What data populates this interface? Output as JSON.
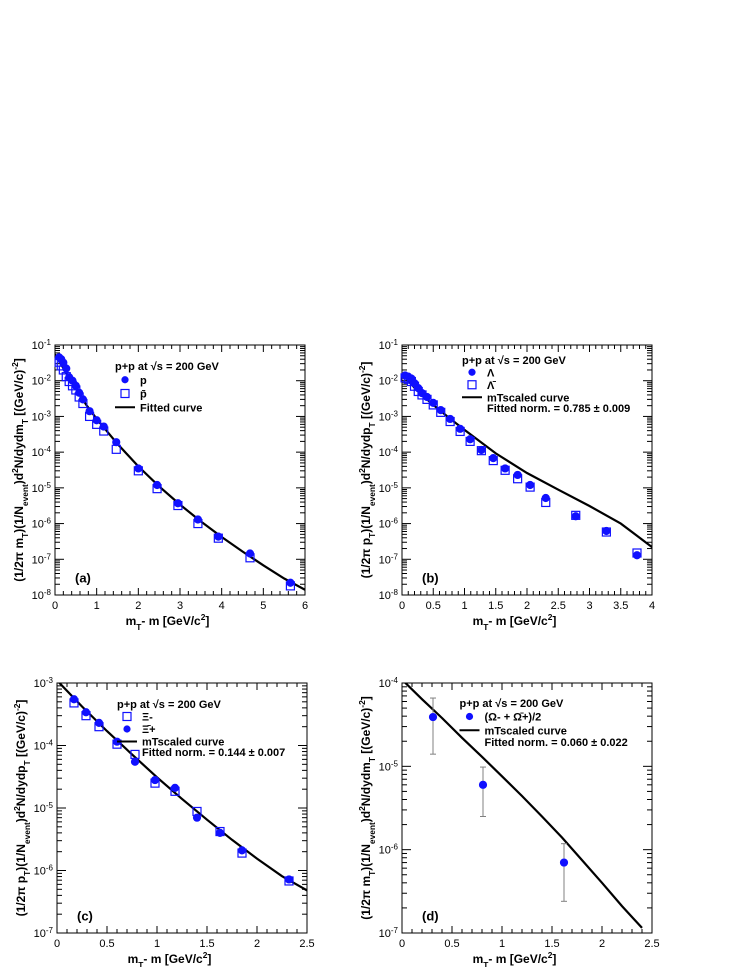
{
  "style": {
    "marker_color": "#1010ff",
    "curve_color": "#000000",
    "error_color": "#808080"
  },
  "chart_data": [
    {
      "id": "a",
      "type": "scatter",
      "panel_label": "(a)",
      "xlabel": "mT- m [GeV/c2]",
      "ylabel": "(1/2π mT)(1/Nevent)d2N/dydmT [(GeV/c)-2]",
      "xlim": [
        0,
        6
      ],
      "ylim": [
        1e-08,
        0.1
      ],
      "ylog": true,
      "x_ticks": [
        "0",
        "1",
        "2",
        "3",
        "4",
        "5",
        "6"
      ],
      "y_ticks": [
        "10-8",
        "10-7",
        "10-6",
        "10-5",
        "10-4",
        "10-3",
        "10-2",
        "10-1"
      ],
      "legend": {
        "title": "p+p at √s = 200 GeV",
        "entries": [
          {
            "marker": "filled-circle",
            "label": "p"
          },
          {
            "marker": "open-square",
            "label": "p̄"
          },
          {
            "marker": "line",
            "label": "Fitted curve"
          }
        ]
      },
      "series": [
        {
          "name": "p",
          "marker": "filled-circle",
          "x": [
            0.1,
            0.15,
            0.2,
            0.27,
            0.34,
            0.42,
            0.5,
            0.58,
            0.67,
            0.83,
            1.0,
            1.17,
            1.47,
            2.0,
            2.45,
            2.95,
            3.43,
            3.92,
            4.68,
            5.65
          ],
          "y": [
            0.045,
            0.04,
            0.032,
            0.022,
            0.0125,
            0.01,
            0.0072,
            0.0046,
            0.003,
            0.0014,
            0.00078,
            0.00052,
            0.00019,
            3.5e-05,
            1.2e-05,
            3.7e-06,
            1.3e-06,
            4.3e-07,
            1.45e-07,
            2.2e-08
          ]
        },
        {
          "name": "p̄",
          "marker": "open-square",
          "x": [
            0.1,
            0.15,
            0.2,
            0.27,
            0.34,
            0.42,
            0.5,
            0.58,
            0.67,
            0.83,
            1.0,
            1.17,
            1.47,
            2.0,
            2.45,
            2.95,
            3.43,
            3.92,
            4.68,
            5.65
          ],
          "y": [
            0.033,
            0.026,
            0.02,
            0.013,
            0.0095,
            0.0072,
            0.0055,
            0.0035,
            0.0023,
            0.001,
            0.0006,
            0.00039,
            0.00012,
            3e-05,
            9.5e-06,
            3.2e-06,
            1e-06,
            3.9e-07,
            1.1e-07,
            1.8e-08
          ]
        }
      ],
      "curve": {
        "name": "Fitted curve",
        "x": [
          0,
          0.25,
          0.5,
          0.75,
          1,
          1.5,
          2,
          2.5,
          3,
          3.5,
          4,
          4.5,
          5,
          5.5,
          6
        ],
        "y": [
          0.055,
          0.018,
          0.006,
          0.0021,
          0.00085,
          0.00017,
          4e-05,
          1.1e-05,
          3.4e-06,
          1.15e-06,
          4.2e-07,
          1.65e-07,
          6.8e-08,
          2.9e-08,
          1.4e-08
        ]
      }
    },
    {
      "id": "b",
      "type": "scatter",
      "panel_label": "(b)",
      "xlabel": "mT- m [GeV/c2]",
      "ylabel": "(1/2π pT)(1/Nevent)d2N/dydpT [(GeV/c)-2]",
      "xlim": [
        0,
        4
      ],
      "ylim": [
        1e-08,
        0.1
      ],
      "ylog": true,
      "x_ticks": [
        "0",
        "0.5",
        "1",
        "1.5",
        "2",
        "2.5",
        "3",
        "3.5",
        "4"
      ],
      "y_ticks": [
        "10-8",
        "10-7",
        "10-6",
        "10-5",
        "10-4",
        "10-3",
        "10-2",
        "10-1"
      ],
      "legend": {
        "title": "p+p at √s = 200 GeV",
        "entries": [
          {
            "marker": "filled-circle",
            "label": "Λ"
          },
          {
            "marker": "open-square",
            "label": "Λ̄"
          },
          {
            "marker": "line",
            "label": "mTscaled curve"
          }
        ],
        "note": "Fitted norm. = 0.785 ± 0.009"
      },
      "series": [
        {
          "name": "Λ",
          "marker": "filled-circle",
          "x": [
            0.05,
            0.1,
            0.15,
            0.2,
            0.26,
            0.32,
            0.4,
            0.5,
            0.62,
            0.77,
            0.93,
            1.09,
            1.27,
            1.46,
            1.65,
            1.85,
            2.05,
            2.3,
            2.78,
            3.27,
            3.76
          ],
          "y": [
            0.014,
            0.013,
            0.0115,
            0.0085,
            0.0062,
            0.0045,
            0.0035,
            0.0024,
            0.0015,
            0.00085,
            0.00045,
            0.00023,
            0.000115,
            6.8e-05,
            3.5e-05,
            2.3e-05,
            1.2e-05,
            5.2e-06,
            1.6e-06,
            6.2e-07,
            1.3e-07
          ]
        },
        {
          "name": "Λ̄",
          "marker": "open-square",
          "x": [
            0.05,
            0.1,
            0.15,
            0.2,
            0.26,
            0.32,
            0.4,
            0.5,
            0.62,
            0.77,
            0.93,
            1.09,
            1.27,
            1.46,
            1.65,
            1.85,
            2.05,
            2.3,
            2.78,
            3.27,
            3.76
          ],
          "y": [
            0.012,
            0.011,
            0.0095,
            0.007,
            0.005,
            0.004,
            0.003,
            0.0021,
            0.0013,
            0.00072,
            0.00038,
            0.0002,
            0.00011,
            5.8e-05,
            3.1e-05,
            1.8e-05,
            1.05e-05,
            3.9e-06,
            1.7e-06,
            5.8e-07,
            1.5e-07
          ]
        }
      ],
      "curve": {
        "name": "mTscaled curve",
        "x": [
          0,
          0.25,
          0.5,
          0.75,
          1,
          1.5,
          2,
          2.5,
          3,
          3.5,
          4
        ],
        "y": [
          0.015,
          0.0052,
          0.0021,
          0.00092,
          0.00042,
          9.2e-05,
          2.6e-05,
          8.9e-06,
          3.1e-06,
          1e-06,
          2.2e-07
        ]
      }
    },
    {
      "id": "c",
      "type": "scatter",
      "panel_label": "(c)",
      "xlabel": "mT- m [GeV/c2]",
      "ylabel": "(1/2π pT)(1/Nevent)d2N/dydpT [(GeV/c)-2]",
      "xlim": [
        0,
        2.5
      ],
      "ylim": [
        1e-07,
        0.001
      ],
      "ylog": true,
      "x_ticks": [
        "0",
        "0.5",
        "1",
        "1.5",
        "2",
        "2.5"
      ],
      "y_ticks": [
        "10-7",
        "10-6",
        "10-5",
        "10-4",
        "10-3"
      ],
      "legend": {
        "title": "p+p at √s = 200 GeV",
        "entries": [
          {
            "marker": "open-square",
            "label": "Ξ-"
          },
          {
            "marker": "filled-circle",
            "label": "Ξ̄+"
          },
          {
            "marker": "line",
            "label": "mTscaled curve"
          }
        ],
        "note": "Fitted norm. = 0.144 ± 0.007"
      },
      "series": [
        {
          "name": "Ξ-",
          "marker": "open-square",
          "x": [
            0.17,
            0.29,
            0.42,
            0.6,
            0.78,
            0.98,
            1.18,
            1.4,
            1.63,
            1.85,
            2.32
          ],
          "y": [
            0.00048,
            0.0003,
            0.0002,
            0.000105,
            7.2e-05,
            2.5e-05,
            1.85e-05,
            8.8e-06,
            4.2e-06,
            1.9e-06,
            6.8e-07
          ]
        },
        {
          "name": "Ξ̄+",
          "marker": "filled-circle",
          "x": [
            0.17,
            0.29,
            0.42,
            0.6,
            0.78,
            0.98,
            1.18,
            1.4,
            1.63,
            1.85,
            2.32
          ],
          "y": [
            0.00055,
            0.00034,
            0.00023,
            0.000115,
            5.5e-05,
            2.8e-05,
            2.1e-05,
            7e-06,
            4e-06,
            2.1e-06,
            7.2e-07
          ]
        }
      ],
      "curve": {
        "name": "mTscaled curve",
        "x": [
          0,
          0.25,
          0.5,
          0.75,
          1,
          1.25,
          1.5,
          1.75,
          2,
          2.25,
          2.5
        ],
        "y": [
          0.0011,
          0.00042,
          0.00017,
          7.2e-05,
          3.1e-05,
          1.4e-05,
          6.5e-06,
          3.1e-06,
          1.55e-06,
          8.1e-07,
          4.8e-07
        ]
      }
    },
    {
      "id": "d",
      "type": "scatter",
      "panel_label": "(d)",
      "xlabel": "mT- m [GeV/c2]",
      "ylabel": "(1/2π mT)(1/Nevent)d2N/dydmT [(GeV/c)-2]",
      "xlim": [
        0,
        2.5
      ],
      "ylim": [
        1e-07,
        0.0001
      ],
      "ylog": true,
      "x_ticks": [
        "0",
        "0.5",
        "1",
        "1.5",
        "2",
        "2.5"
      ],
      "y_ticks": [
        "10-7",
        "10-6",
        "10-5",
        "10-4"
      ],
      "legend": {
        "title": "p+p at √s = 200 GeV",
        "entries": [
          {
            "marker": "filled-circle",
            "label": "(Ω- + Ω̄+)/2"
          },
          {
            "marker": "line",
            "label": "mTscaled curve"
          }
        ],
        "note": "Fitted norm. = 0.060 ± 0.022"
      },
      "series": [
        {
          "name": "(Ω- + Ω̄+)/2",
          "marker": "filled-circle",
          "x": [
            0.31,
            0.81,
            1.62
          ],
          "y": [
            3.9e-05,
            6e-06,
            7e-07
          ],
          "err_lo": [
            2.5e-05,
            3.5e-06,
            4.6e-07
          ],
          "err_hi": [
            2.7e-05,
            3.8e-06,
            4.8e-07
          ]
        }
      ],
      "curve": {
        "name": "mTscaled curve",
        "x": [
          0,
          0.2,
          0.4,
          0.6,
          0.8,
          1.0,
          1.2,
          1.4,
          1.6,
          1.8,
          2.0,
          2.2,
          2.4
        ],
        "y": [
          0.00011,
          6.4e-05,
          3.8e-05,
          2.2e-05,
          1.3e-05,
          7.6e-06,
          4.4e-06,
          2.5e-06,
          1.4e-06,
          7.5e-07,
          4e-07,
          2.1e-07,
          1.15e-07
        ]
      }
    }
  ]
}
